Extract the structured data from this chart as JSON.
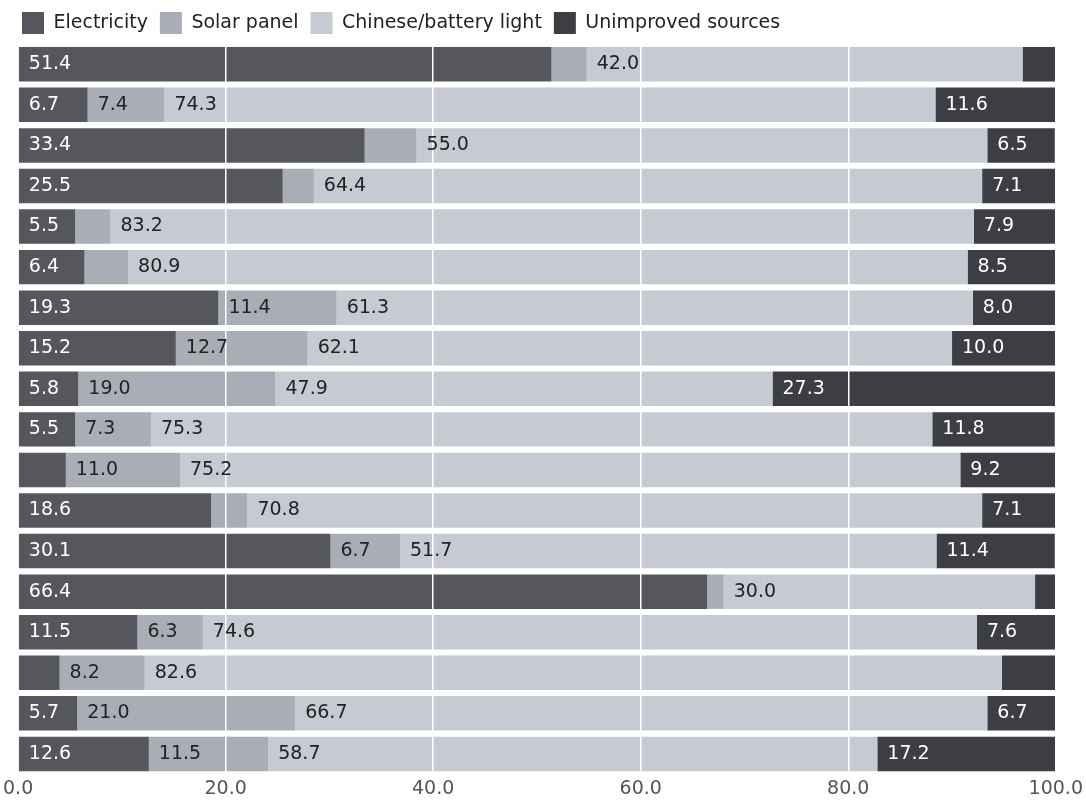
{
  "chart_data": {
    "type": "bar",
    "orientation": "horizontal",
    "stacked": true,
    "categories": [
      null,
      null,
      null,
      null,
      null,
      null,
      null,
      null,
      null,
      null,
      null,
      null,
      null,
      null,
      null,
      null,
      null,
      null
    ],
    "series": [
      {
        "name": "Electricity",
        "color": "#55575c",
        "values": [
          51.4,
          6.7,
          33.4,
          25.5,
          5.5,
          6.4,
          19.3,
          15.2,
          5.8,
          5.5,
          4.6,
          18.6,
          30.1,
          66.4,
          11.5,
          4.0,
          5.7,
          12.6
        ],
        "value_labels": [
          "51.4",
          "6.7",
          "33.4",
          "25.5",
          "5.5",
          "6.4",
          "19.3",
          "15.2",
          "5.8",
          "5.5",
          null,
          "18.6",
          "30.1",
          "66.4",
          "11.5",
          null,
          "5.7",
          "12.6"
        ]
      },
      {
        "name": "Solar panel",
        "color": "#a9adb5",
        "values": [
          3.4,
          7.4,
          5.0,
          3.0,
          3.4,
          4.2,
          11.4,
          12.7,
          19.0,
          7.3,
          11.0,
          3.5,
          6.7,
          1.6,
          6.3,
          8.2,
          21.0,
          11.5
        ],
        "value_labels": [
          null,
          "7.4",
          null,
          null,
          null,
          null,
          "11.4",
          "12.7",
          "19.0",
          "7.3",
          "11.0",
          null,
          "6.7",
          null,
          "6.3",
          "8.2",
          "21.0",
          "11.5"
        ]
      },
      {
        "name": "Chinese/battery light",
        "color": "#c5cad3",
        "values": [
          42.0,
          74.3,
          55.0,
          64.4,
          83.2,
          80.9,
          61.3,
          62.1,
          47.9,
          75.3,
          75.2,
          70.8,
          51.7,
          30.0,
          74.6,
          82.6,
          66.7,
          58.7
        ],
        "value_labels": [
          "42.0",
          "74.3",
          "55.0",
          "64.4",
          "83.2",
          "80.9",
          "61.3",
          "62.1",
          "47.9",
          "75.3",
          "75.2",
          "70.8",
          "51.7",
          "30.0",
          "74.6",
          "82.6",
          "66.7",
          "58.7"
        ]
      },
      {
        "name": "Unimproved sources",
        "color": "#3c3e43",
        "values": [
          3.2,
          11.6,
          6.5,
          7.1,
          7.9,
          8.5,
          8.0,
          10.0,
          27.3,
          11.8,
          9.2,
          7.1,
          11.4,
          2.0,
          7.6,
          5.2,
          6.7,
          17.2
        ],
        "value_labels": [
          null,
          "11.6",
          "6.5",
          "7.1",
          "7.9",
          "8.5",
          "8.0",
          "10.0",
          "27.3",
          "11.8",
          "9.2",
          "7.1",
          "11.4",
          null,
          "7.6",
          null,
          "6.7",
          "17.2"
        ]
      }
    ],
    "xlim": [
      0,
      100
    ],
    "xticks": [
      {
        "value": 0,
        "label": "0.0"
      },
      {
        "value": 20,
        "label": "20.0"
      },
      {
        "value": 40,
        "label": "40.0"
      },
      {
        "value": 60,
        "label": "60.0"
      },
      {
        "value": 80,
        "label": "80.0"
      },
      {
        "value": 100,
        "label": "100.0"
      }
    ],
    "grid": "x",
    "legend": "top left",
    "tick_labels": "x"
  }
}
